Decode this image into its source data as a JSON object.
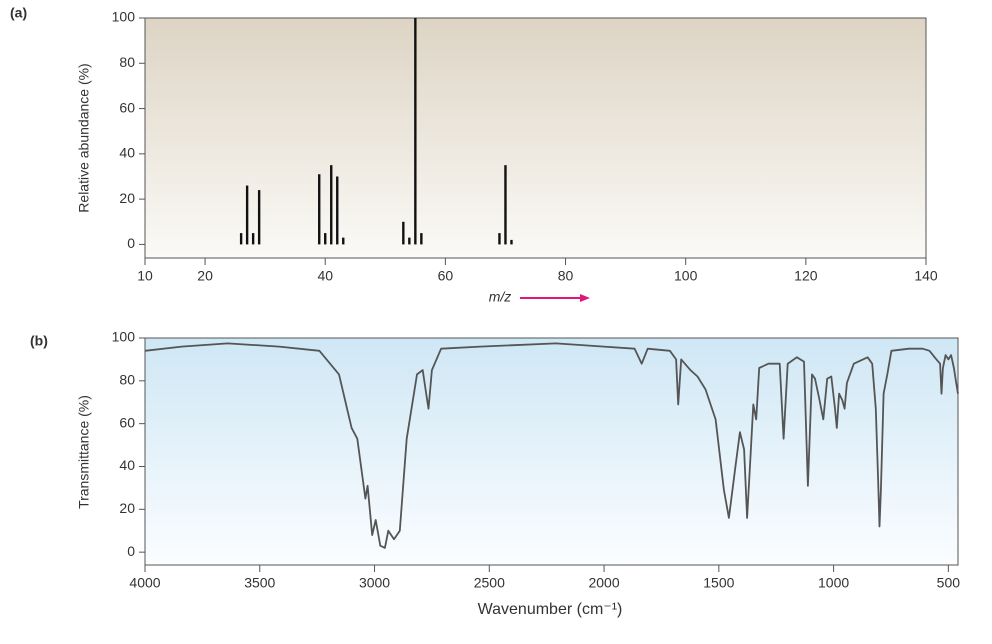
{
  "chart_data": [
    {
      "type": "bar",
      "title": "(a)",
      "x_label": "m/z",
      "y_label": "Relative abundance (%)",
      "x": [
        26,
        27,
        28,
        29,
        39,
        40,
        41,
        42,
        43,
        53,
        54,
        55,
        56,
        69,
        70,
        71
      ],
      "values": [
        5,
        26,
        5,
        24,
        31,
        5,
        35,
        30,
        3,
        10,
        3,
        100,
        5,
        5,
        35,
        2
      ],
      "color": "#111111",
      "xlim": [
        10,
        140
      ],
      "xticks": [
        10,
        20,
        40,
        60,
        80,
        100,
        120,
        140
      ],
      "ylim": [
        -6,
        100
      ],
      "yticks": [
        0,
        20,
        40,
        60,
        80,
        100
      ]
    },
    {
      "type": "line",
      "title": "(b)",
      "x_label": "Wavenumber (cm⁻¹)",
      "y_label": "Transmittance (%)",
      "x": [
        4000,
        3840,
        3640,
        3415,
        3240,
        3155,
        3100,
        3075,
        3040,
        3030,
        3010,
        2995,
        2975,
        2955,
        2940,
        2915,
        2890,
        2860,
        2815,
        2790,
        2775,
        2765,
        2750,
        2710,
        2540,
        2210,
        2000,
        1867,
        1836,
        1810,
        1713,
        1686,
        1677,
        1664,
        1624,
        1593,
        1558,
        1514,
        1478,
        1456,
        1430,
        1408,
        1390,
        1377,
        1363,
        1350,
        1337,
        1324,
        1284,
        1235,
        1218,
        1200,
        1160,
        1129,
        1112,
        1094,
        1081,
        1063,
        1045,
        1028,
        1010,
        994,
        986,
        976,
        962,
        952,
        942,
        912,
        852,
        832,
        816,
        806,
        800,
        794,
        782,
        766,
        748,
        672,
        612,
        582,
        552,
        536,
        530,
        524,
        512,
        500,
        488,
        476,
        466,
        458
      ],
      "values": [
        94,
        96,
        97.5,
        96,
        94,
        83,
        58,
        53,
        25,
        31,
        8,
        15,
        3,
        2,
        10,
        6,
        10,
        53,
        83,
        85,
        74,
        67,
        85,
        95,
        96,
        97.5,
        96,
        95,
        88,
        95,
        94,
        90,
        69,
        90,
        85,
        82,
        76,
        62,
        29,
        16,
        38,
        56,
        48,
        16,
        43,
        69,
        62,
        86,
        88,
        88,
        53,
        88,
        91,
        89,
        31,
        83,
        81,
        72,
        62,
        81,
        82,
        67,
        58,
        74,
        71,
        67,
        79,
        88,
        91,
        88,
        67,
        34,
        12,
        29,
        74,
        83,
        94,
        95,
        95,
        94,
        90,
        88,
        74,
        86,
        92,
        90,
        92,
        86,
        79,
        74
      ],
      "color": "#555555",
      "xlim": [
        4000,
        458
      ],
      "xticks": [
        4000,
        3500,
        3000,
        2500,
        2000,
        1500,
        1000,
        500
      ],
      "ylim": [
        -6,
        100
      ],
      "yticks": [
        0,
        20,
        40,
        60,
        80,
        100
      ]
    }
  ]
}
